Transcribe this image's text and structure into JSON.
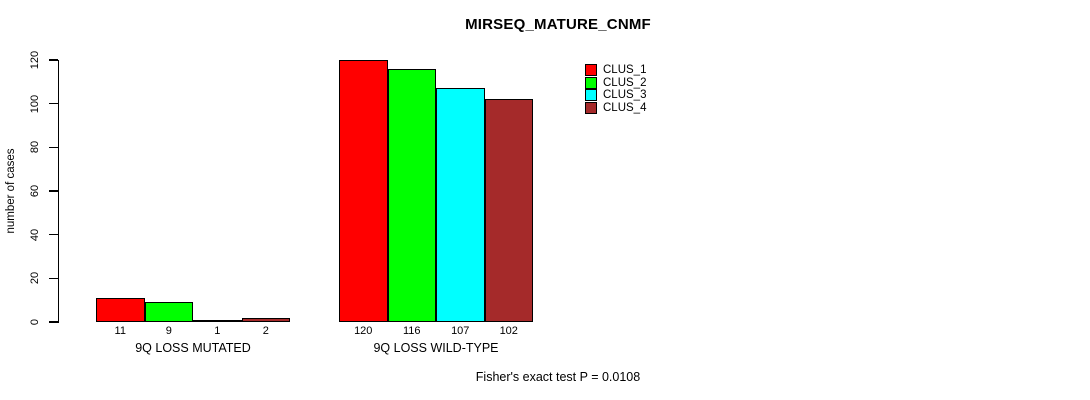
{
  "title": "MIRSEQ_MATURE_CNMF",
  "footer": "Fisher's exact test P = 0.0108",
  "chart_data": {
    "type": "bar",
    "title": "MIRSEQ_MATURE_CNMF",
    "xlabel": "",
    "ylabel": "number of cases",
    "ylim": [
      0,
      120
    ],
    "yticks": [
      0,
      20,
      40,
      60,
      80,
      100,
      120
    ],
    "grid": false,
    "legend_position": "top-right-inside",
    "categories": [
      "9Q LOSS MUTATED",
      "9Q LOSS WILD-TYPE"
    ],
    "series": [
      {
        "name": "CLUS_1",
        "color": "#ff0000",
        "values": [
          11,
          120
        ]
      },
      {
        "name": "CLUS_2",
        "color": "#00ff00",
        "values": [
          9,
          116
        ]
      },
      {
        "name": "CLUS_3",
        "color": "#00ffff",
        "values": [
          1,
          107
        ]
      },
      {
        "name": "CLUS_4",
        "color": "#a52a2a",
        "values": [
          2,
          102
        ]
      }
    ],
    "bar_value_labels": [
      [
        "11",
        "9",
        "1",
        "2"
      ],
      [
        "120",
        "116",
        "107",
        "102"
      ]
    ],
    "annotation": "Fisher's exact test P = 0.0108"
  }
}
